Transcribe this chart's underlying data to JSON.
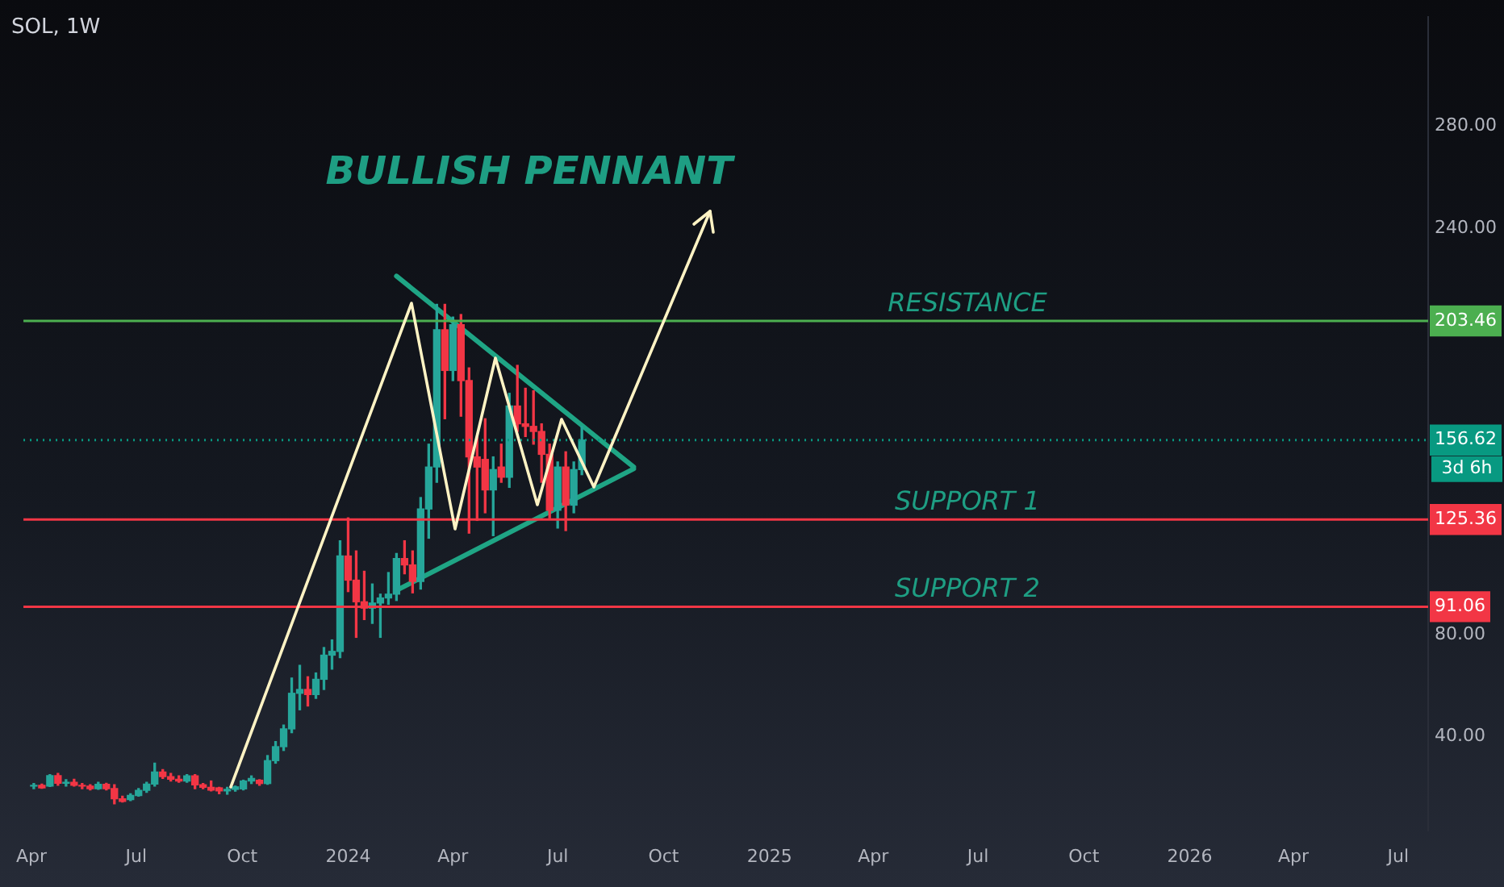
{
  "chart_data": {
    "type": "candlestick",
    "title": "BULLISH PENNANT",
    "subtitle": "SOL, 1W",
    "annotations": [
      "3d 6h"
    ],
    "x": [
      "2023-04-03",
      "2023-04-10",
      "2023-04-17",
      "2023-04-24",
      "2023-05-01",
      "2023-05-08",
      "2023-05-15",
      "2023-05-22",
      "2023-05-29",
      "2023-06-05",
      "2023-06-12",
      "2023-06-19",
      "2023-06-26",
      "2023-07-03",
      "2023-07-10",
      "2023-07-17",
      "2023-07-24",
      "2023-07-31",
      "2023-08-07",
      "2023-08-14",
      "2023-08-21",
      "2023-08-28",
      "2023-09-04",
      "2023-09-11",
      "2023-09-18",
      "2023-09-25",
      "2023-10-02",
      "2023-10-09",
      "2023-10-16",
      "2023-10-23",
      "2023-10-30",
      "2023-11-06",
      "2023-11-13",
      "2023-11-20",
      "2023-11-27",
      "2023-12-04",
      "2023-12-11",
      "2023-12-18",
      "2023-12-25",
      "2024-01-01",
      "2024-01-08",
      "2024-01-15",
      "2024-01-22",
      "2024-01-29",
      "2024-02-05",
      "2024-02-12",
      "2024-02-19",
      "2024-02-26",
      "2024-03-04",
      "2024-03-11",
      "2024-03-18",
      "2024-03-25",
      "2024-04-01",
      "2024-04-08",
      "2024-04-15",
      "2024-04-22",
      "2024-04-29",
      "2024-05-06",
      "2024-05-13",
      "2024-05-20",
      "2024-05-27",
      "2024-06-03",
      "2024-06-10",
      "2024-06-17",
      "2024-06-24",
      "2024-07-01",
      "2024-07-08",
      "2024-07-15",
      "2024-07-22"
    ],
    "ohlc": [
      [
        20.5,
        21.5,
        19.5,
        20.8
      ],
      [
        20.8,
        21.3,
        19.6,
        19.8
      ],
      [
        20.5,
        25.0,
        20.3,
        24.6
      ],
      [
        24.6,
        25.5,
        20.8,
        21.6
      ],
      [
        21.6,
        23.0,
        20.5,
        22.0
      ],
      [
        22.0,
        23.2,
        20.5,
        20.8
      ],
      [
        20.8,
        21.5,
        19.5,
        20.5
      ],
      [
        20.5,
        21.0,
        19.0,
        19.5
      ],
      [
        19.5,
        22.0,
        19.2,
        21.2
      ],
      [
        21.2,
        21.6,
        19.0,
        19.5
      ],
      [
        19.5,
        21.0,
        13.5,
        15.5
      ],
      [
        15.5,
        16.5,
        14.2,
        14.5
      ],
      [
        15.2,
        17.5,
        14.8,
        16.8
      ],
      [
        16.8,
        19.5,
        16.5,
        18.8
      ],
      [
        18.8,
        22.0,
        18.0,
        21.3
      ],
      [
        21.3,
        29.5,
        20.5,
        26.0
      ],
      [
        26.0,
        27.0,
        23.5,
        24.2
      ],
      [
        24.2,
        25.5,
        22.5,
        23.2
      ],
      [
        23.2,
        24.5,
        22.0,
        22.5
      ],
      [
        22.5,
        25.0,
        22.0,
        24.5
      ],
      [
        24.5,
        25.0,
        19.5,
        21.0
      ],
      [
        21.0,
        21.5,
        19.5,
        20.0
      ],
      [
        20.0,
        22.5,
        18.6,
        18.9
      ],
      [
        19.8,
        20.0,
        17.5,
        18.6
      ],
      [
        18.6,
        20.0,
        17.3,
        19.2
      ],
      [
        19.2,
        20.5,
        18.5,
        20.2
      ],
      [
        19.4,
        22.8,
        19.0,
        22.5
      ],
      [
        22.5,
        24.5,
        21.5,
        23.5
      ],
      [
        22.8,
        23.0,
        20.8,
        21.5
      ],
      [
        21.5,
        32.5,
        21.2,
        30.5
      ],
      [
        30.5,
        38.0,
        29.5,
        36.0
      ],
      [
        36.0,
        44.5,
        34.5,
        43.0
      ],
      [
        43.0,
        63.0,
        41.5,
        57.0
      ],
      [
        57.0,
        68.0,
        50.5,
        58.5
      ],
      [
        58.5,
        63.5,
        52.0,
        56.5
      ],
      [
        56.5,
        65.0,
        55.0,
        62.5
      ],
      [
        62.5,
        75.0,
        58.5,
        72.0
      ],
      [
        72.0,
        78.0,
        66.5,
        73.5
      ],
      [
        73.5,
        117.0,
        71.0,
        111.0
      ],
      [
        111.0,
        126.0,
        97.0,
        101.5
      ],
      [
        101.5,
        113.0,
        79.0,
        93.0
      ],
      [
        93.0,
        105.0,
        86.0,
        90.5
      ],
      [
        90.5,
        100.0,
        84.5,
        92.5
      ],
      [
        92.5,
        96.0,
        79.0,
        94.5
      ],
      [
        94.5,
        104.5,
        92.0,
        96.0
      ],
      [
        96.0,
        112.0,
        93.5,
        110.0
      ],
      [
        110.0,
        117.0,
        104.0,
        107.5
      ],
      [
        107.5,
        113.0,
        96.5,
        101.0
      ],
      [
        101.0,
        134.0,
        98.0,
        129.5
      ],
      [
        129.5,
        155.0,
        118.0,
        146.0
      ],
      [
        146.0,
        210.0,
        140.0,
        200.0
      ],
      [
        200.0,
        210.0,
        165.0,
        184.0
      ],
      [
        184.0,
        205.0,
        180.0,
        202.0
      ],
      [
        202.0,
        206.0,
        166.0,
        180.0
      ],
      [
        180.0,
        185.0,
        120.0,
        150.0
      ],
      [
        150.0,
        158.0,
        125.0,
        146.0
      ],
      [
        149.0,
        165.0,
        128.0,
        137.0
      ],
      [
        137.0,
        150.0,
        119.0,
        145.0
      ],
      [
        146.0,
        155.0,
        140.0,
        142.0
      ],
      [
        142.0,
        175.0,
        138.0,
        170.0
      ],
      [
        170.0,
        186.0,
        160.0,
        163.0
      ],
      [
        163.0,
        177.0,
        158.0,
        162.0
      ],
      [
        162.0,
        176.0,
        155.0,
        160.0
      ],
      [
        160.0,
        163.0,
        140.0,
        151.0
      ],
      [
        151.0,
        155.0,
        126.0,
        129.0
      ],
      [
        129.0,
        148.0,
        122.0,
        146.0
      ],
      [
        146.0,
        152.0,
        121.0,
        131.0
      ],
      [
        131.0,
        148.0,
        128.0,
        145.0
      ],
      [
        145.0,
        162.0,
        143.0,
        156.62
      ]
    ],
    "xlim": [
      "2023-03-25",
      "2026-07-27"
    ],
    "xticks": [
      {
        "value": "2023-04-01",
        "label": "Apr"
      },
      {
        "value": "2023-07-01",
        "label": "Jul"
      },
      {
        "value": "2023-10-01",
        "label": "Oct"
      },
      {
        "value": "2024-01-01",
        "label": "2024"
      },
      {
        "value": "2024-04-01",
        "label": "Apr"
      },
      {
        "value": "2024-07-01",
        "label": "Jul"
      },
      {
        "value": "2024-10-01",
        "label": "Oct"
      },
      {
        "value": "2025-01-01",
        "label": "2025"
      },
      {
        "value": "2025-04-01",
        "label": "Apr"
      },
      {
        "value": "2025-07-01",
        "label": "Jul"
      },
      {
        "value": "2025-10-01",
        "label": "Oct"
      },
      {
        "value": "2026-01-01",
        "label": "2026"
      },
      {
        "value": "2026-04-01",
        "label": "Apr"
      },
      {
        "value": "2026-07-01",
        "label": "Jul"
      }
    ],
    "ylim": [
      3,
      323
    ],
    "yticks": [
      {
        "value": 40,
        "label": "40.00"
      },
      {
        "value": 80,
        "label": "80.00"
      },
      91.06,
      125.36,
      156.62,
      203.46,
      {
        "value": 240,
        "label": "240.00"
      },
      {
        "value": 280,
        "label": "280.00"
      }
    ],
    "series": [
      {
        "type": "line",
        "color": "#1fa585",
        "x": [
          "2024-02-12",
          "2024-09-05"
        ],
        "values": [
          221.1,
          146.0
        ]
      },
      {
        "type": "line",
        "color": "#1fa585",
        "x": [
          "2024-02-12",
          "2024-09-05"
        ],
        "values": [
          97.5,
          145.3
        ]
      }
    ],
    "ref_lines": [
      {
        "axis": "y",
        "value": 203.46,
        "label": "RESISTANCE",
        "color": "#4caf50"
      },
      {
        "axis": "y",
        "value": 156.62,
        "label": null,
        "color": "#089981",
        "line_style": "dotted"
      },
      {
        "axis": "y",
        "value": 125.36,
        "label": "SUPPORT 1",
        "color": "#f23645"
      },
      {
        "axis": "y",
        "value": 91.06,
        "label": "SUPPORT 2",
        "color": "#f23645"
      }
    ],
    "grid": false,
    "legend": false
  }
}
